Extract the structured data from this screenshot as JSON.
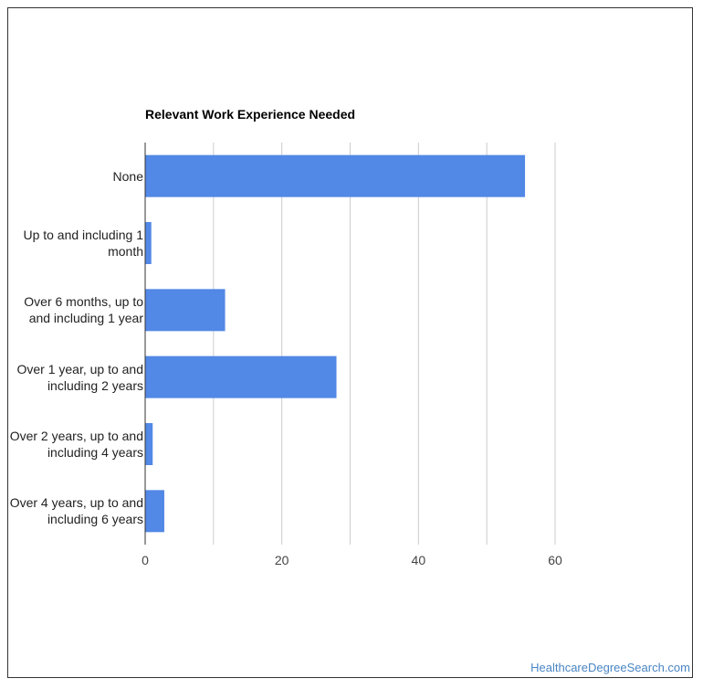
{
  "chart_data": {
    "type": "bar",
    "orientation": "horizontal",
    "title": "Relevant Work Experience Needed",
    "categories": [
      "None",
      "Up to and including 1 month",
      "Over 6 months, up to and including 1 year",
      "Over 1 year, up to and including 2 years",
      "Over 2 years, up to and including 4 years",
      "Over 4 years, up to and including 6 years"
    ],
    "category_lines": [
      [
        "None"
      ],
      [
        "Up to and including 1",
        "month"
      ],
      [
        "Over 6 months, up to",
        "and including 1 year"
      ],
      [
        "Over 1 year, up to and",
        "including 2 years"
      ],
      [
        "Over 2 years, up to and",
        "including 4 years"
      ],
      [
        "Over 4 years, up to and",
        "including 6 years"
      ]
    ],
    "values": [
      55.6,
      0.9,
      11.7,
      28.0,
      1.1,
      2.8
    ],
    "xlim": [
      0,
      60
    ],
    "xticks": [
      0,
      20,
      40,
      60
    ],
    "grid": true,
    "bar_color": "#5288e6",
    "grid_color": "#cccccc",
    "axis_color": "#333333"
  },
  "watermark": "HealthcareDegreeSearch.com"
}
